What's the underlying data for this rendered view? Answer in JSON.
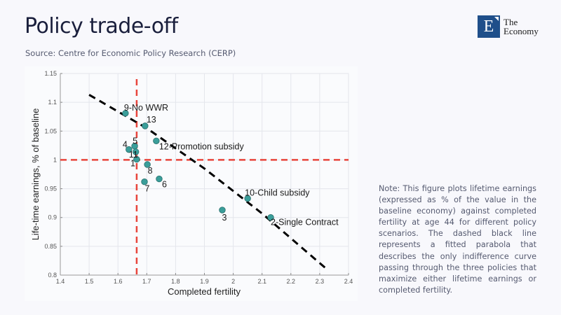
{
  "header": {
    "title": "Policy trade-off",
    "source": "Source: Centre for Economic Policy Research (CERP)"
  },
  "logo": {
    "letter": "E",
    "line1": "The",
    "line2": "Economy",
    "brand_color": "#1f4f8a"
  },
  "note": "Note: This figure plots lifetime earnings (expressed as % of the value in the baseline economy) against completed fertility at age 44 for different policy scenarios. The dashed black line represents a fitted parabola that describes the only indifference curve passing through the three policies that maximize either lifetime earnings or completed fertility.",
  "chart_data": {
    "type": "scatter",
    "title": "",
    "xlabel": "Completed fertility",
    "ylabel": "Life-time earnings, % of baseline",
    "xlim": [
      1.4,
      2.4
    ],
    "ylim": [
      0.8,
      1.15
    ],
    "xticks": [
      1.4,
      1.5,
      1.6,
      1.7,
      1.8,
      1.9,
      2.0,
      2.1,
      2.2,
      2.3,
      2.4
    ],
    "xtick_labels": [
      "1.4",
      "1.5",
      "1.6",
      "1.7",
      "1.8",
      "1.9",
      "2",
      "2.1",
      "2.2",
      "2.3",
      "2.4"
    ],
    "yticks": [
      0.8,
      0.85,
      0.9,
      0.95,
      1.0,
      1.05,
      1.1,
      1.15
    ],
    "ytick_labels": [
      "0.8",
      "0.85",
      "0.9",
      "0.95",
      "1",
      "1.05",
      "1.1",
      "1.15"
    ],
    "grid": true,
    "marker_color": "#3a9e9a",
    "points": [
      {
        "label": "9-No WWR",
        "x": 1.626,
        "y": 1.081,
        "label_pos": "above-right"
      },
      {
        "label": "13",
        "x": 1.694,
        "y": 1.059,
        "label_pos": "above-right"
      },
      {
        "label": "12-Promotion subsidy",
        "x": 1.733,
        "y": 1.033,
        "label_pos": "below-right"
      },
      {
        "label": "5",
        "x": 1.658,
        "y": 1.024,
        "label_pos": "above-left"
      },
      {
        "label": "4",
        "x": 1.638,
        "y": 1.018,
        "label_pos": "above-left"
      },
      {
        "label": "11",
        "x": 1.662,
        "y": 1.014,
        "label_pos": "below-left"
      },
      {
        "label": "1",
        "x": 1.665,
        "y": 1.001,
        "label_pos": "below-left"
      },
      {
        "label": "8",
        "x": 1.702,
        "y": 0.992,
        "label_pos": "below"
      },
      {
        "label": "6",
        "x": 1.743,
        "y": 0.967,
        "label_pos": "below-right"
      },
      {
        "label": "7",
        "x": 1.692,
        "y": 0.962,
        "label_pos": "below"
      },
      {
        "label": "3",
        "x": 1.962,
        "y": 0.913,
        "label_pos": "below"
      },
      {
        "label": "10-Child subsidy",
        "x": 2.05,
        "y": 0.933,
        "label_pos": "above-right"
      },
      {
        "label": "2-Single Contract",
        "x": 2.13,
        "y": 0.9,
        "label_pos": "below-right"
      }
    ],
    "reference_lines": [
      {
        "orientation": "vertical",
        "value": 1.665,
        "color": "#e8453c",
        "style": "dashed"
      },
      {
        "orientation": "horizontal",
        "value": 1.0,
        "color": "#e8453c",
        "style": "dashed"
      }
    ],
    "fitted_curve": {
      "name": "Fitted parabola (indifference curve)",
      "color": "#000000",
      "style": "dashed",
      "x": [
        1.5,
        1.7,
        1.9,
        2.1,
        2.33
      ],
      "y": [
        1.113,
        1.055,
        0.985,
        0.907,
        0.808
      ]
    }
  }
}
